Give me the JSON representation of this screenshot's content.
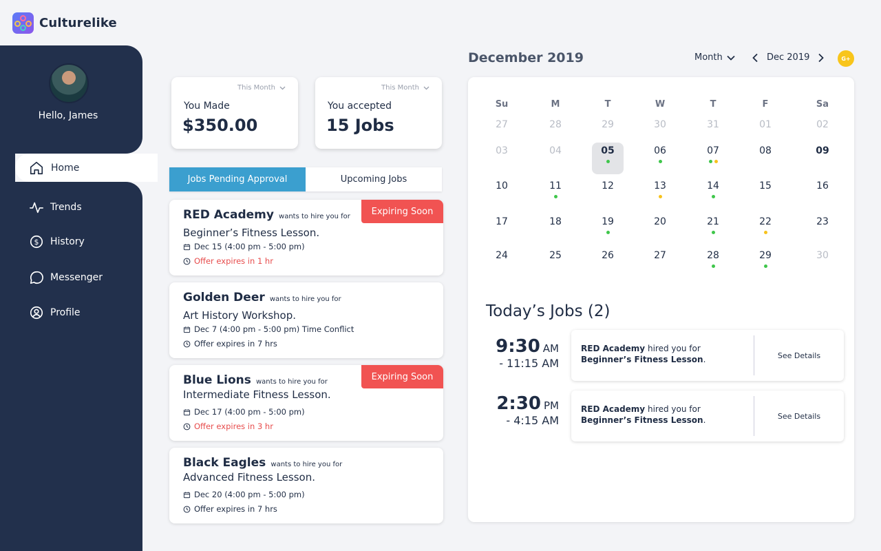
{
  "app": {
    "name": "Culturelike"
  },
  "user": {
    "greeting": "Hello, James"
  },
  "nav": {
    "home": "Home",
    "trends": "Trends",
    "history": "History",
    "messenger": "Messenger",
    "profile": "Profile"
  },
  "stats": [
    {
      "period": "This Month",
      "label": "You Made",
      "value": "$350.00"
    },
    {
      "period": "This Month",
      "label": "You accepted",
      "value": "15 Jobs"
    }
  ],
  "tabs": {
    "pending": "Jobs Pending Approval",
    "upcoming": "Upcoming Jobs"
  },
  "jobs": [
    {
      "company": "RED Academy",
      "wants": "wants to hire you for",
      "lesson": "Beginner’s Fitness Lesson.",
      "date": "Dec 15 (4:00 pm - 5:00 pm)",
      "expires": "Offer expires in 1 hr",
      "badge": "Expiring Soon"
    },
    {
      "company": "Golden Deer",
      "wants": "wants to hire you for",
      "lesson": "Art History Workshop.",
      "date": "Dec 7 (4:00 pm - 5:00 pm) Time Conflict",
      "expires": "Offer expires in 7 hrs",
      "badge": ""
    },
    {
      "company": "Blue Lions",
      "wants": "wants to hire you for",
      "lesson": "Intermediate Fitness Lesson.",
      "date": "Dec 17 (4:00 pm - 5:00 pm)",
      "expires": "Offer expires in 3 hr",
      "badge": "Expiring Soon"
    },
    {
      "company": "Black Eagles",
      "wants": "wants to hire you for",
      "lesson": "Advanced Fitness Lesson.",
      "date": "Dec 20 (4:00 pm - 5:00 pm)",
      "expires": "Offer expires in 7 hrs",
      "badge": ""
    }
  ],
  "calendar": {
    "heading": "December 2019",
    "view": "Month",
    "current": "Dec 2019",
    "user_badge": "G+",
    "weekdays": [
      "Su",
      "M",
      "T",
      "W",
      "T",
      "F",
      "Sa"
    ],
    "colors": {
      "green": "#3fc64b",
      "yellow": "#f7c21c"
    },
    "weeks": [
      [
        {
          "d": "27",
          "m": true
        },
        {
          "d": "28",
          "m": true
        },
        {
          "d": "29",
          "m": true
        },
        {
          "d": "30",
          "m": true
        },
        {
          "d": "31",
          "m": true
        },
        {
          "d": "01",
          "m": true
        },
        {
          "d": "02",
          "m": true
        }
      ],
      [
        {
          "d": "03",
          "m": true
        },
        {
          "d": "04",
          "m": true
        },
        {
          "d": "05",
          "sel": true,
          "dots": [
            "green"
          ]
        },
        {
          "d": "06",
          "dots": [
            "green"
          ]
        },
        {
          "d": "07",
          "dots": [
            "green",
            "yellow"
          ]
        },
        {
          "d": "08"
        },
        {
          "d": "09",
          "bold": true
        }
      ],
      [
        {
          "d": "10"
        },
        {
          "d": "11",
          "dots": [
            "green"
          ]
        },
        {
          "d": "12"
        },
        {
          "d": "13",
          "dots": [
            "yellow"
          ]
        },
        {
          "d": "14",
          "dots": [
            "green"
          ]
        },
        {
          "d": "15"
        },
        {
          "d": "16"
        }
      ],
      [
        {
          "d": "17"
        },
        {
          "d": "18"
        },
        {
          "d": "19",
          "dots": [
            "green"
          ]
        },
        {
          "d": "20"
        },
        {
          "d": "21",
          "dots": [
            "green"
          ]
        },
        {
          "d": "22",
          "dots": [
            "yellow"
          ]
        },
        {
          "d": "23"
        }
      ],
      [
        {
          "d": "24"
        },
        {
          "d": "25"
        },
        {
          "d": "26"
        },
        {
          "d": "27"
        },
        {
          "d": "28",
          "dots": [
            "green"
          ]
        },
        {
          "d": "29",
          "dots": [
            "green"
          ]
        },
        {
          "d": "30",
          "m": true
        }
      ]
    ]
  },
  "today": {
    "title": "Today’s Jobs (2)",
    "items": [
      {
        "start": "9:30",
        "ampm": "AM",
        "end": "- 11:15 AM",
        "company": "RED Academy",
        "hired": "hired you for",
        "lesson": "Beginner’s Fitness Lesson",
        "period": ".",
        "action": "See Details"
      },
      {
        "start": "2:30",
        "ampm": "PM",
        "end": "- 4:15 AM",
        "company": "RED Academy",
        "hired": "hired you for",
        "lesson": "Beginner’s Fitness Lesson",
        "period": ".",
        "action": "See Details"
      }
    ]
  }
}
